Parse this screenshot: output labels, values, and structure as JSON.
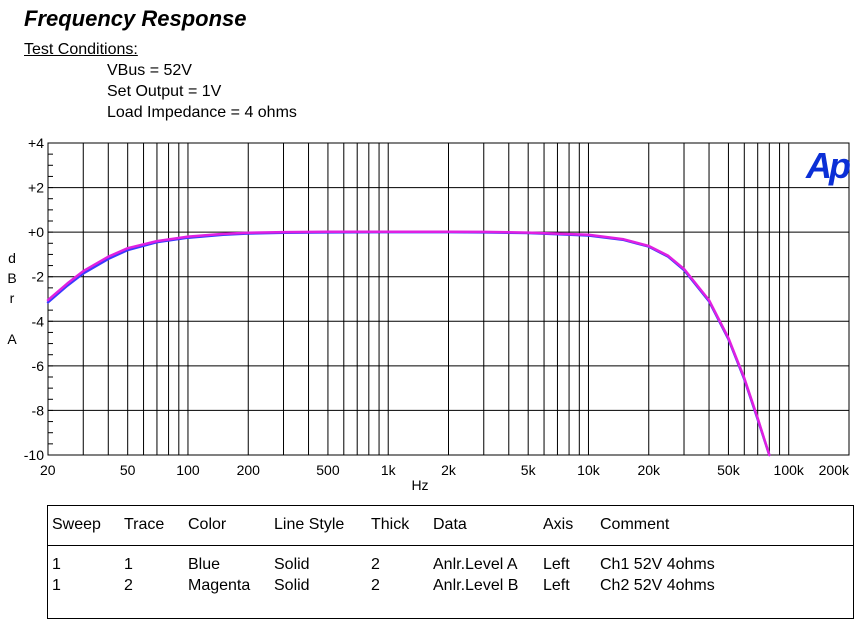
{
  "report": {
    "title": "Frequency Response",
    "conditions_heading": "Test Conditions:",
    "conditions": [
      "VBus = 52V",
      "Set Output = 1V",
      "Load Impedance = 4 ohms"
    ]
  },
  "logo": {
    "text": "Ap",
    "color": "#0b2fd6"
  },
  "chart_data": {
    "type": "line",
    "title": "Frequency Response",
    "xlabel": "Hz",
    "ylabel": [
      "d",
      "B",
      "r",
      "A"
    ],
    "xscale": "log",
    "xlim": [
      20,
      200000
    ],
    "ylim": [
      -10,
      4
    ],
    "grid": true,
    "x_ticks": [
      {
        "value": 20,
        "label": "20"
      },
      {
        "value": 50,
        "label": "50"
      },
      {
        "value": 100,
        "label": "100"
      },
      {
        "value": 200,
        "label": "200"
      },
      {
        "value": 500,
        "label": "500"
      },
      {
        "value": 1000,
        "label": "1k"
      },
      {
        "value": 2000,
        "label": "2k"
      },
      {
        "value": 5000,
        "label": "5k"
      },
      {
        "value": 10000,
        "label": "10k"
      },
      {
        "value": 20000,
        "label": "20k"
      },
      {
        "value": 50000,
        "label": "50k"
      },
      {
        "value": 100000,
        "label": "100k"
      },
      {
        "value": 200000,
        "label": "200k"
      }
    ],
    "y_ticks": [
      {
        "value": 4,
        "label": "+4"
      },
      {
        "value": 2,
        "label": "+2"
      },
      {
        "value": 0,
        "label": "+0"
      },
      {
        "value": -2,
        "label": "-2"
      },
      {
        "value": -4,
        "label": "-4"
      },
      {
        "value": -6,
        "label": "-6"
      },
      {
        "value": -8,
        "label": "-8"
      },
      {
        "value": -10,
        "label": "-10"
      }
    ],
    "series": [
      {
        "name": "Anlr.Level A",
        "color": "#3a3aff",
        "x": [
          20,
          25,
          30,
          40,
          50,
          70,
          100,
          150,
          200,
          300,
          500,
          1000,
          2000,
          3000,
          5000,
          10000,
          15000,
          20000,
          25000,
          30000,
          40000,
          50000,
          60000,
          70000,
          80000
        ],
        "y": [
          -3.15,
          -2.4,
          -1.85,
          -1.2,
          -0.8,
          -0.45,
          -0.25,
          -0.12,
          -0.06,
          -0.03,
          -0.01,
          0,
          0,
          -0.01,
          -0.04,
          -0.15,
          -0.35,
          -0.65,
          -1.1,
          -1.7,
          -3.1,
          -4.8,
          -6.6,
          -8.4,
          -10.1
        ]
      },
      {
        "name": "Anlr.Level B",
        "color": "#e020e0",
        "x": [
          20,
          25,
          30,
          40,
          50,
          70,
          100,
          150,
          200,
          300,
          500,
          1000,
          2000,
          3000,
          5000,
          10000,
          15000,
          20000,
          25000,
          30000,
          40000,
          50000,
          60000,
          70000,
          80000
        ],
        "y": [
          -3.05,
          -2.3,
          -1.75,
          -1.1,
          -0.72,
          -0.4,
          -0.2,
          -0.08,
          -0.03,
          0,
          0.02,
          0.02,
          0.02,
          0.01,
          -0.02,
          -0.12,
          -0.32,
          -0.62,
          -1.06,
          -1.65,
          -3.05,
          -4.75,
          -6.55,
          -8.35,
          -10.05
        ]
      }
    ]
  },
  "legend": {
    "headers": [
      "Sweep",
      "Trace",
      "Color",
      "Line Style",
      "Thick",
      "Data",
      "Axis",
      "Comment"
    ],
    "rows": [
      [
        "1",
        "1",
        "Blue",
        "Solid",
        "2",
        "Anlr.Level A",
        "Left",
        "Ch1 52V 4ohms"
      ],
      [
        "1",
        "2",
        "Magenta",
        "Solid",
        "2",
        "Anlr.Level B",
        "Left",
        "Ch2 52V 4ohms"
      ]
    ]
  }
}
